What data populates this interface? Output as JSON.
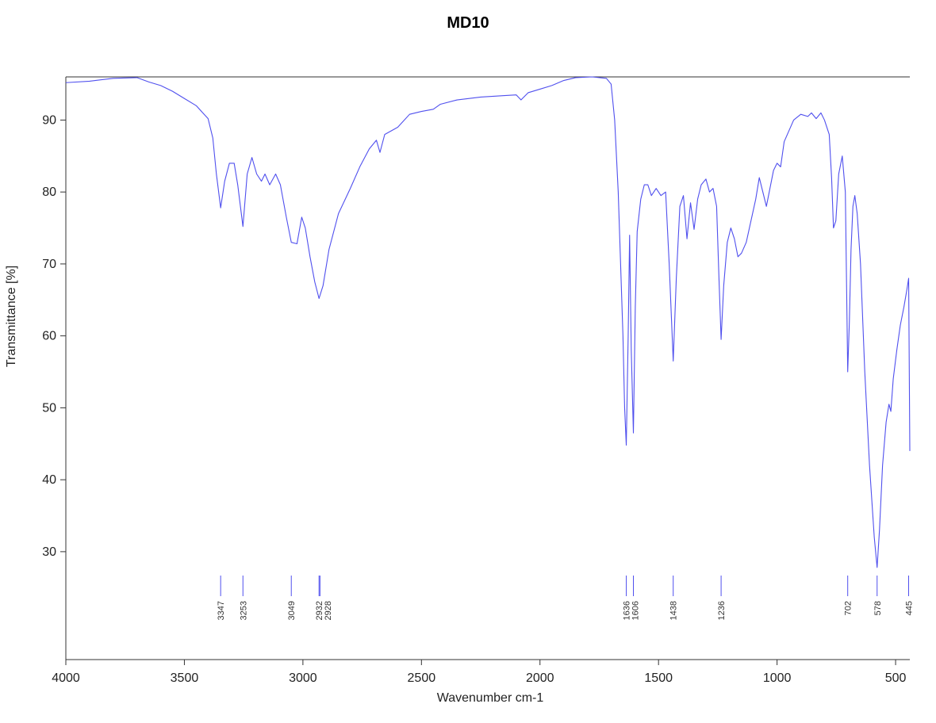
{
  "chart_data": {
    "type": "line",
    "title": "MD10",
    "xlabel": "Wavenumber cm-1",
    "ylabel": "Transmittance [%]",
    "xlim": [
      4000,
      440
    ],
    "xreversed": true,
    "ylim": [
      15,
      96
    ],
    "xticks": [
      4000,
      3500,
      3000,
      2500,
      2000,
      1500,
      1000,
      500
    ],
    "yticks": [
      30,
      40,
      50,
      60,
      70,
      80,
      90
    ],
    "grid": false,
    "line_color": "#5050ee",
    "series": [
      {
        "points": [
          [
            4000,
            95.2
          ],
          [
            3900,
            95.4
          ],
          [
            3800,
            95.8
          ],
          [
            3700,
            95.9
          ],
          [
            3650,
            95.3
          ],
          [
            3600,
            94.8
          ],
          [
            3550,
            94.0
          ],
          [
            3500,
            93.0
          ],
          [
            3450,
            92.0
          ],
          [
            3400,
            90.2
          ],
          [
            3380,
            87.5
          ],
          [
            3365,
            82.5
          ],
          [
            3347,
            77.8
          ],
          [
            3330,
            81.5
          ],
          [
            3310,
            84.0
          ],
          [
            3290,
            84.0
          ],
          [
            3275,
            81.0
          ],
          [
            3253,
            75.2
          ],
          [
            3235,
            82.5
          ],
          [
            3215,
            84.8
          ],
          [
            3195,
            82.5
          ],
          [
            3175,
            81.5
          ],
          [
            3160,
            82.5
          ],
          [
            3140,
            81.0
          ],
          [
            3115,
            82.5
          ],
          [
            3095,
            81.0
          ],
          [
            3070,
            76.5
          ],
          [
            3049,
            73.0
          ],
          [
            3025,
            72.8
          ],
          [
            3005,
            76.5
          ],
          [
            2990,
            75.0
          ],
          [
            2970,
            71.0
          ],
          [
            2950,
            67.5
          ],
          [
            2932,
            65.2
          ],
          [
            2915,
            67.0
          ],
          [
            2890,
            72.0
          ],
          [
            2850,
            77.0
          ],
          [
            2800,
            80.5
          ],
          [
            2760,
            83.5
          ],
          [
            2720,
            86.0
          ],
          [
            2690,
            87.2
          ],
          [
            2675,
            85.5
          ],
          [
            2655,
            88.0
          ],
          [
            2600,
            89.0
          ],
          [
            2550,
            90.8
          ],
          [
            2500,
            91.2
          ],
          [
            2450,
            91.5
          ],
          [
            2420,
            92.2
          ],
          [
            2350,
            92.8
          ],
          [
            2250,
            93.2
          ],
          [
            2150,
            93.4
          ],
          [
            2100,
            93.5
          ],
          [
            2080,
            92.8
          ],
          [
            2050,
            93.8
          ],
          [
            2000,
            94.3
          ],
          [
            1950,
            94.8
          ],
          [
            1900,
            95.5
          ],
          [
            1850,
            95.9
          ],
          [
            1780,
            96.0
          ],
          [
            1720,
            95.8
          ],
          [
            1700,
            95.0
          ],
          [
            1685,
            90.0
          ],
          [
            1670,
            80.0
          ],
          [
            1660,
            70.0
          ],
          [
            1650,
            60.0
          ],
          [
            1643,
            50.0
          ],
          [
            1636,
            44.8
          ],
          [
            1628,
            60.0
          ],
          [
            1622,
            74.0
          ],
          [
            1615,
            58.0
          ],
          [
            1606,
            46.5
          ],
          [
            1598,
            64.0
          ],
          [
            1590,
            74.5
          ],
          [
            1575,
            79.0
          ],
          [
            1560,
            81.0
          ],
          [
            1545,
            81.0
          ],
          [
            1530,
            79.5
          ],
          [
            1510,
            80.5
          ],
          [
            1490,
            79.5
          ],
          [
            1470,
            80.0
          ],
          [
            1455,
            70.0
          ],
          [
            1438,
            56.5
          ],
          [
            1425,
            68.0
          ],
          [
            1410,
            78.0
          ],
          [
            1395,
            79.5
          ],
          [
            1380,
            73.5
          ],
          [
            1365,
            78.5
          ],
          [
            1350,
            74.8
          ],
          [
            1335,
            79.0
          ],
          [
            1320,
            81.0
          ],
          [
            1300,
            81.8
          ],
          [
            1285,
            80.0
          ],
          [
            1270,
            80.5
          ],
          [
            1255,
            78.0
          ],
          [
            1245,
            68.0
          ],
          [
            1236,
            59.5
          ],
          [
            1225,
            67.0
          ],
          [
            1210,
            73.0
          ],
          [
            1195,
            75.0
          ],
          [
            1180,
            73.5
          ],
          [
            1165,
            71.0
          ],
          [
            1150,
            71.5
          ],
          [
            1130,
            73.0
          ],
          [
            1110,
            76.0
          ],
          [
            1090,
            79.0
          ],
          [
            1075,
            82.0
          ],
          [
            1060,
            80.0
          ],
          [
            1045,
            78.0
          ],
          [
            1030,
            80.5
          ],
          [
            1015,
            83.0
          ],
          [
            1000,
            84.0
          ],
          [
            985,
            83.5
          ],
          [
            970,
            87.0
          ],
          [
            950,
            88.5
          ],
          [
            930,
            90.0
          ],
          [
            900,
            90.8
          ],
          [
            870,
            90.5
          ],
          [
            855,
            91.0
          ],
          [
            835,
            90.2
          ],
          [
            815,
            91.0
          ],
          [
            800,
            90.0
          ],
          [
            780,
            88.0
          ],
          [
            770,
            82.0
          ],
          [
            762,
            75.0
          ],
          [
            752,
            76.0
          ],
          [
            740,
            82.5
          ],
          [
            725,
            85.0
          ],
          [
            712,
            80.0
          ],
          [
            702,
            55.0
          ],
          [
            695,
            62.0
          ],
          [
            688,
            72.0
          ],
          [
            680,
            78.0
          ],
          [
            672,
            79.5
          ],
          [
            662,
            77.0
          ],
          [
            648,
            70.0
          ],
          [
            630,
            55.0
          ],
          [
            610,
            42.0
          ],
          [
            590,
            32.0
          ],
          [
            578,
            27.8
          ],
          [
            568,
            33.0
          ],
          [
            555,
            42.0
          ],
          [
            540,
            48.0
          ],
          [
            528,
            50.5
          ],
          [
            520,
            49.5
          ],
          [
            510,
            54.0
          ],
          [
            495,
            58.0
          ],
          [
            480,
            61.5
          ],
          [
            465,
            64.0
          ],
          [
            452,
            66.5
          ],
          [
            445,
            68.0
          ],
          [
            440,
            44.0
          ]
        ]
      }
    ],
    "peaks": [
      {
        "x": 3347,
        "label": "3347"
      },
      {
        "x": 3253,
        "label": "3253"
      },
      {
        "x": 3049,
        "label": "3049"
      },
      {
        "x": 2932,
        "label": "2932"
      },
      {
        "x": 2928,
        "label": "2928"
      },
      {
        "x": 1636,
        "label": "1636"
      },
      {
        "x": 1606,
        "label": "1606"
      },
      {
        "x": 1438,
        "label": "1438"
      },
      {
        "x": 1236,
        "label": "1236"
      },
      {
        "x": 702,
        "label": "702"
      },
      {
        "x": 578,
        "label": "578"
      },
      {
        "x": 445,
        "label": "445"
      }
    ]
  }
}
